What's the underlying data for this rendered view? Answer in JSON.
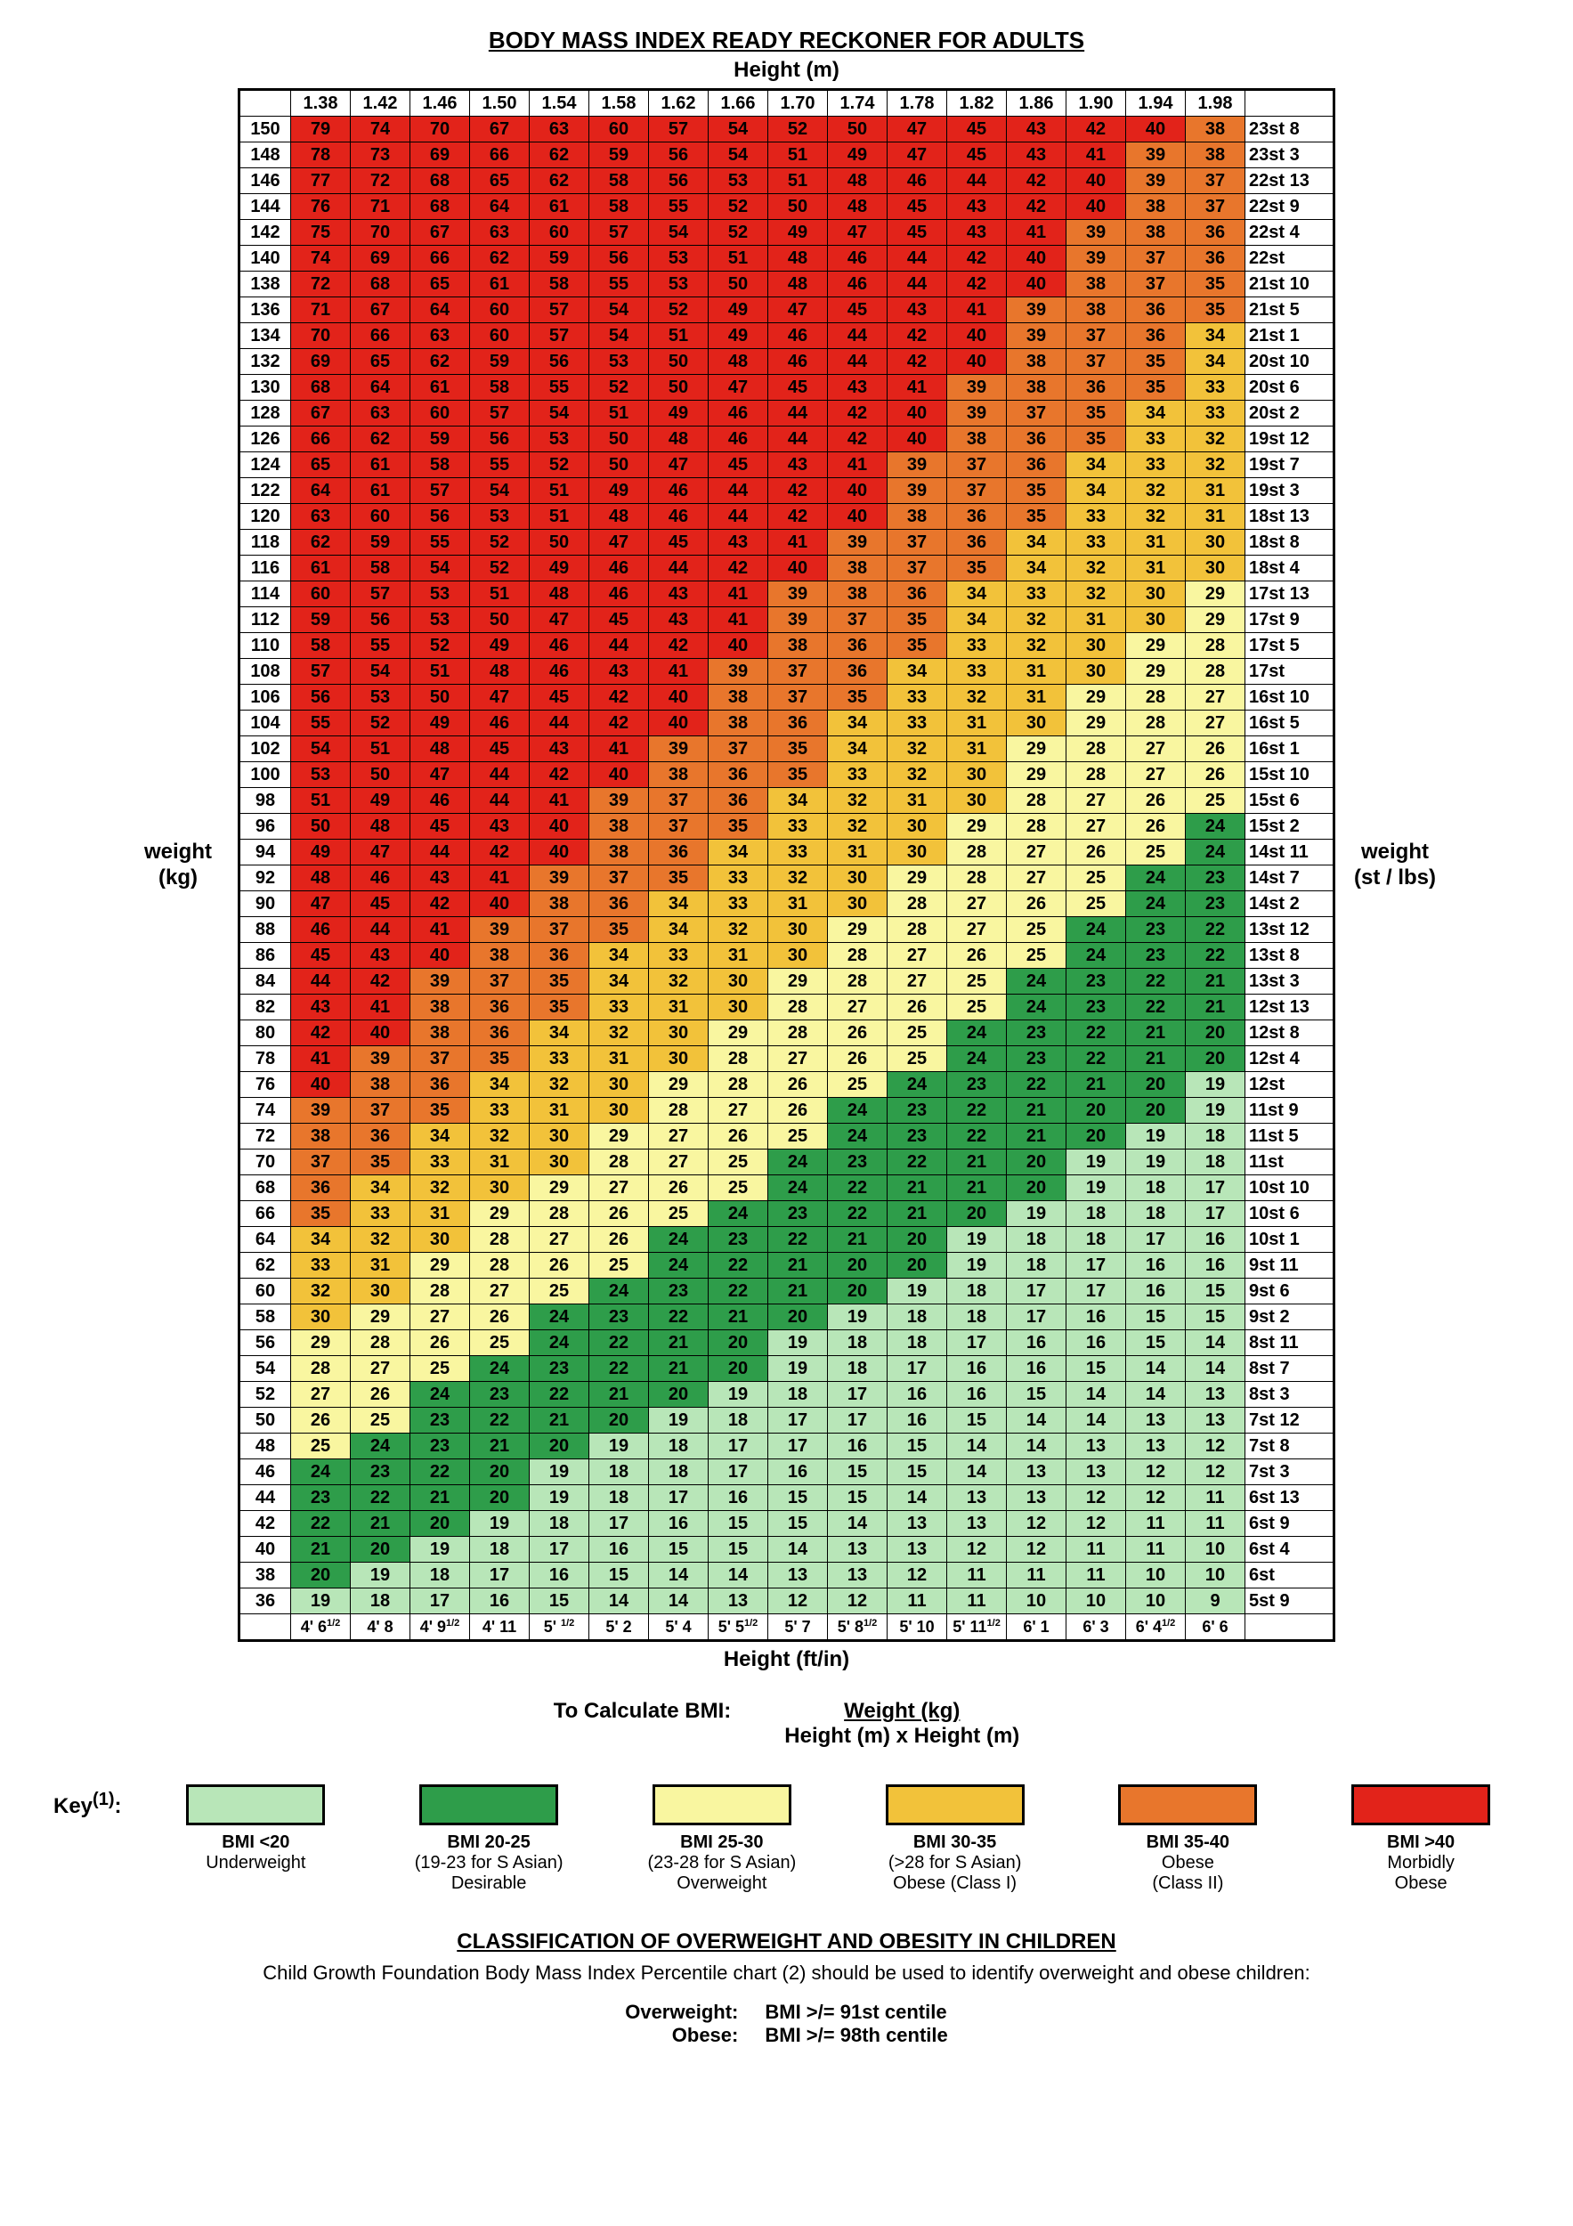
{
  "title": "BODY MASS INDEX READY RECKONER FOR ADULTS",
  "height_m_label": "Height (m)",
  "height_ft_label": "Height (ft/in)",
  "weight_kg_label": "weight\n(kg)",
  "weight_st_label": "weight\n(st / lbs)",
  "heights_m": [
    "1.38",
    "1.42",
    "1.46",
    "1.50",
    "1.54",
    "1.58",
    "1.62",
    "1.66",
    "1.70",
    "1.74",
    "1.78",
    "1.82",
    "1.86",
    "1.90",
    "1.94",
    "1.98"
  ],
  "heights_ft": [
    "4' 6^1/2",
    "4' 8",
    "4' 9^1/2",
    "4' 11",
    "5' ^1/2",
    "5' 2",
    "5' 4",
    "5' 5^1/2",
    "5' 7",
    "5' 8^1/2",
    "5' 10",
    "5' 11^1/2",
    "6' 1",
    "6' 3",
    "6' 4^1/2",
    "6' 6"
  ],
  "weights_kg": [
    150,
    148,
    146,
    144,
    142,
    140,
    138,
    136,
    134,
    132,
    130,
    128,
    126,
    124,
    122,
    120,
    118,
    116,
    114,
    112,
    110,
    108,
    106,
    104,
    102,
    100,
    98,
    96,
    94,
    92,
    90,
    88,
    86,
    84,
    82,
    80,
    78,
    76,
    74,
    72,
    70,
    68,
    66,
    64,
    62,
    60,
    58,
    56,
    54,
    52,
    50,
    48,
    46,
    44,
    42,
    40,
    38,
    36
  ],
  "weights_st": [
    "23st 8",
    "23st 3",
    "22st 13",
    "22st 9",
    "22st 4",
    "22st",
    "21st 10",
    "21st 5",
    "21st 1",
    "20st 10",
    "20st 6",
    "20st 2",
    "19st 12",
    "19st 7",
    "19st 3",
    "18st 13",
    "18st 8",
    "18st 4",
    "17st 13",
    "17st 9",
    "17st 5",
    "17st",
    "16st 10",
    "16st 5",
    "16st 1",
    "15st 10",
    "15st 6",
    "15st 2",
    "14st 11",
    "14st 7",
    "14st 2",
    "13st 12",
    "13st 8",
    "13st 3",
    "12st 13",
    "12st 8",
    "12st 4",
    "12st",
    "11st 9",
    "11st 5",
    "11st",
    "10st 10",
    "10st 6",
    "10st 1",
    "9st 11",
    "9st 6",
    "9st 2",
    "8st 11",
    "8st 7",
    "8st 3",
    "7st 12",
    "7st 8",
    "7st 3",
    "6st 13",
    "6st 9",
    "6st 4",
    "6st",
    "5st 9"
  ],
  "colors": {
    "under": "#b8e6b8",
    "desirable": "#2e9d4a",
    "over": "#f9f6a0",
    "obese1": "#f2c23a",
    "obese2": "#e8762c",
    "morbid": "#e2231a"
  },
  "thresholds": {
    "under": 20,
    "desirable": 25,
    "over": 30,
    "obese1": 35,
    "obese2": 40
  },
  "formula": {
    "label": "To Calculate BMI:",
    "numerator": "Weight (kg)",
    "denominator": "Height (m) x Height (m)"
  },
  "key_label": "Key(1):",
  "key": [
    {
      "range": "BMI <20",
      "label": "Underweight",
      "asian": "",
      "colorKey": "under"
    },
    {
      "range": "BMI 20-25",
      "label": "Desirable",
      "asian": "(19-23 for S Asian)",
      "colorKey": "desirable"
    },
    {
      "range": "BMI 25-30",
      "label": "Overweight",
      "asian": "(23-28 for S Asian)",
      "colorKey": "over"
    },
    {
      "range": "BMI 30-35",
      "label": "Obese (Class I)",
      "asian": "(>28 for S Asian)",
      "colorKey": "obese1"
    },
    {
      "range": "BMI 35-40",
      "label": "Obese\n(Class II)",
      "asian": "",
      "colorKey": "obese2"
    },
    {
      "range": "BMI >40",
      "label": "Morbidly\nObese",
      "asian": "",
      "colorKey": "morbid"
    }
  ],
  "classification": {
    "title": "CLASSIFICATION OF OVERWEIGHT AND OBESITY IN CHILDREN",
    "text": "Child Growth Foundation Body Mass Index Percentile chart (2) should be used to identify overweight and obese children:",
    "rows": [
      {
        "label": "Overweight:",
        "value": "BMI >/= 91st centile"
      },
      {
        "label": "Obese:",
        "value": "BMI >/= 98th centile"
      }
    ]
  }
}
